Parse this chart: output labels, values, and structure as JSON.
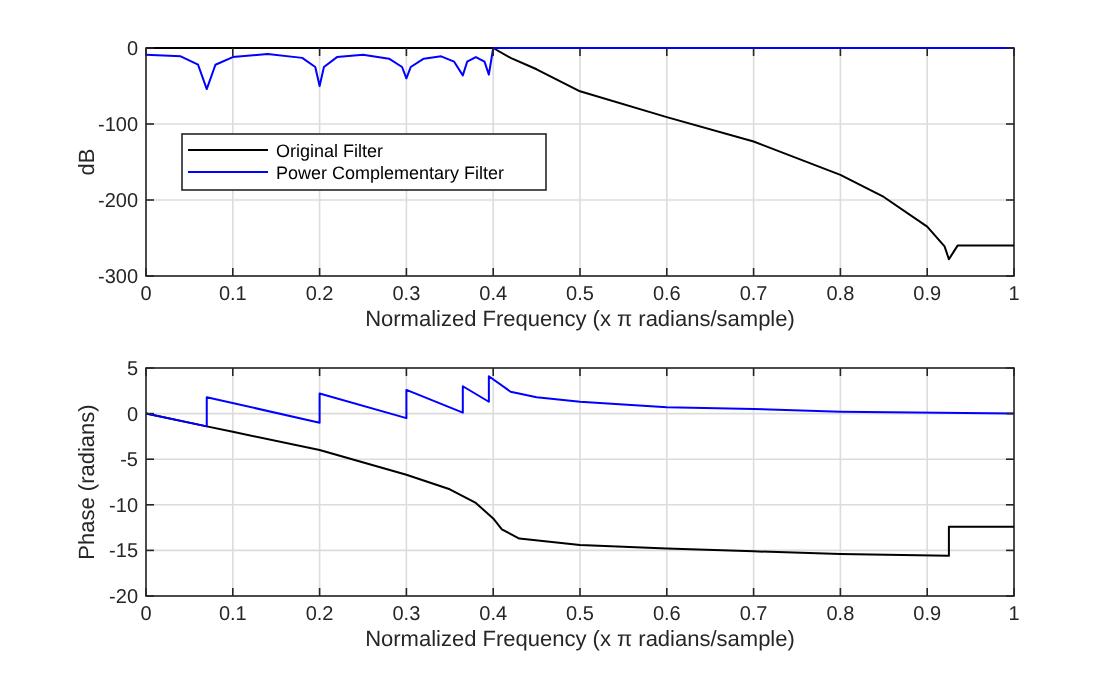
{
  "chart_data": [
    {
      "type": "line",
      "ylabel": "dB",
      "xlabel": "Normalized Frequency (x π radians/sample)",
      "xlim": [
        0,
        1
      ],
      "xticks": [
        0,
        0.1,
        0.2,
        0.3,
        0.4,
        0.5,
        0.6,
        0.7,
        0.8,
        0.9,
        1
      ],
      "ylim": [
        -300,
        0
      ],
      "yticks": [
        -300,
        -200,
        -100,
        0
      ],
      "grid": true,
      "legend": "left",
      "series": [
        {
          "name": "Original Filter",
          "color": "#000000",
          "x": [
            0,
            0.4,
            0.42,
            0.45,
            0.5,
            0.6,
            0.7,
            0.8,
            0.85,
            0.9,
            0.92,
            0.925,
            0.935,
            1
          ],
          "values": [
            0,
            0,
            -13,
            -28,
            -57,
            -91,
            -123,
            -167,
            -196,
            -235,
            -261,
            -278,
            -260,
            -260
          ]
        },
        {
          "name": "Power Complementary Filter",
          "color": "#0000ff",
          "x": [
            0,
            0.04,
            0.06,
            0.07,
            0.08,
            0.1,
            0.14,
            0.18,
            0.195,
            0.2,
            0.205,
            0.22,
            0.25,
            0.28,
            0.295,
            0.3,
            0.305,
            0.32,
            0.34,
            0.355,
            0.365,
            0.37,
            0.38,
            0.39,
            0.395,
            0.4,
            0.45,
            1
          ],
          "values": [
            -9,
            -11,
            -22,
            -54,
            -22,
            -12,
            -8,
            -13,
            -25,
            -50,
            -25,
            -12,
            -9,
            -14,
            -25,
            -40,
            -25,
            -14,
            -11,
            -18,
            -36,
            -18,
            -12,
            -18,
            -35,
            0,
            0,
            0
          ]
        }
      ]
    },
    {
      "type": "line",
      "ylabel": "Phase (radians)",
      "xlabel": "Normalized Frequency (x π radians/sample)",
      "xlim": [
        0,
        1
      ],
      "xticks": [
        0,
        0.1,
        0.2,
        0.3,
        0.4,
        0.5,
        0.6,
        0.7,
        0.8,
        0.9,
        1
      ],
      "ylim": [
        -20,
        5
      ],
      "yticks": [
        -20,
        -15,
        -10,
        -5,
        0,
        5
      ],
      "grid": true,
      "series": [
        {
          "color": "#000000",
          "x": [
            0,
            0.07,
            0.1,
            0.2,
            0.3,
            0.35,
            0.38,
            0.4,
            0.41,
            0.43,
            0.5,
            0.6,
            0.7,
            0.8,
            0.925,
            0.925,
            1
          ],
          "values": [
            0,
            -1.4,
            -2,
            -4,
            -6.7,
            -8.3,
            -9.8,
            -11.5,
            -12.7,
            -13.7,
            -14.4,
            -14.8,
            -15.1,
            -15.4,
            -15.6,
            -12.4,
            -12.4
          ]
        },
        {
          "color": "#0000ff",
          "x": [
            0,
            0.07,
            0.07,
            0.2,
            0.2,
            0.3,
            0.3,
            0.365,
            0.365,
            0.395,
            0.395,
            0.42,
            0.45,
            0.5,
            0.6,
            0.7,
            0.8,
            1
          ],
          "values": [
            0,
            -1.4,
            1.8,
            -1,
            2.2,
            -0.5,
            2.6,
            0.1,
            3,
            1.3,
            4.1,
            2.4,
            1.8,
            1.3,
            0.7,
            0.5,
            0.2,
            0
          ]
        }
      ]
    }
  ]
}
